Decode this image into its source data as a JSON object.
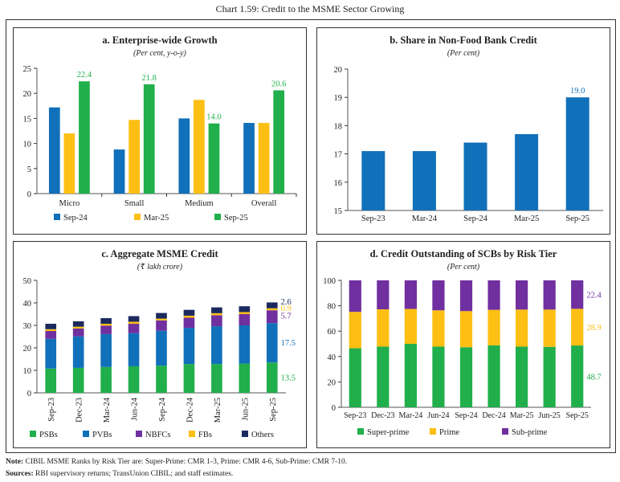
{
  "title": "Chart 1.59: Credit to the MSME Sector Growing",
  "panels": {
    "a": {
      "title": "a. Enterprise-wide Growth",
      "subtitle": "(Per cent, y-o-y)"
    },
    "b": {
      "title": "b. Share in Non-Food Bank Credit",
      "subtitle": "(Per cent)"
    },
    "c": {
      "title": "c. Aggregate MSME Credit",
      "subtitle": "(₹ lakh crore)"
    },
    "d": {
      "title": "d. Credit Outstanding of SCBs by Risk Tier",
      "subtitle": "(Per cent)"
    }
  },
  "note": {
    "label": "Note:",
    "text": " CIBIL MSME Ranks by Risk Tier are: Super-Prime: CMR 1-3, Prime: CMR 4-6, Sub-Prime: CMR 7-10."
  },
  "sources": {
    "label": "Sources:",
    "text": " RBI supervisory returns; TransUnion CIBIL; and staff estimates."
  },
  "chart_data": [
    {
      "type": "bar",
      "id": "a",
      "title": "a. Enterprise-wide Growth",
      "ylabel": "(Per cent, y-o-y)",
      "ylim": [
        0,
        25
      ],
      "yticks": [
        0,
        5,
        10,
        15,
        20,
        25
      ],
      "categories": [
        "Micro",
        "Small",
        "Medium",
        "Overall"
      ],
      "series": [
        {
          "name": "Sep-24",
          "color": "#1170BA",
          "values": [
            17.2,
            8.8,
            15.0,
            14.1
          ]
        },
        {
          "name": "Mar-25",
          "color": "#FDBF13",
          "values": [
            12.0,
            14.7,
            18.7,
            14.1
          ]
        },
        {
          "name": "Sep-25",
          "color": "#21AF4C",
          "values": [
            22.4,
            21.8,
            14.0,
            20.6
          ],
          "labels": [
            "22.4",
            "21.8",
            "14.0",
            "20.6"
          ]
        }
      ],
      "legend": "bottom",
      "grid": false
    },
    {
      "type": "bar",
      "id": "b",
      "title": "b. Share in Non-Food Bank Credit",
      "ylabel": "(Per cent)",
      "ylim": [
        15,
        20
      ],
      "yticks": [
        15,
        16,
        17,
        18,
        19,
        20
      ],
      "categories": [
        "Sep-23",
        "Mar-24",
        "Sep-24",
        "Mar-25",
        "Sep-25"
      ],
      "series": [
        {
          "color": "#1170BA",
          "values": [
            17.1,
            17.1,
            17.4,
            17.7,
            19.0
          ],
          "labels": [
            "",
            "",
            "",
            "",
            "19.0"
          ]
        }
      ],
      "grid": false
    },
    {
      "type": "bar",
      "stacked": true,
      "id": "c",
      "title": "c. Aggregate MSME Credit",
      "ylabel": "(₹ lakh crore)",
      "ylim": [
        0,
        50
      ],
      "yticks": [
        0,
        10,
        20,
        30,
        40,
        50
      ],
      "categories": [
        "Sep-23",
        "Dec-23",
        "Mar-24",
        "Jun-24",
        "Sep-24",
        "Dec-24",
        "Mar-25",
        "Jun-25",
        "Sep-25"
      ],
      "series": [
        {
          "name": "PSBs",
          "color": "#21AF4C",
          "values": [
            10.8,
            11.1,
            11.5,
            11.8,
            12.1,
            12.8,
            12.8,
            13.0,
            13.5
          ],
          "last_label": "13.5"
        },
        {
          "name": "PVBs",
          "color": "#1170BA",
          "values": [
            13.2,
            14.0,
            14.6,
            14.7,
            15.5,
            16.1,
            16.8,
            17.0,
            17.5
          ],
          "last_label": "17.5"
        },
        {
          "name": "NBFCs",
          "color": "#7030A0",
          "values": [
            3.5,
            3.5,
            3.8,
            4.2,
            4.6,
            4.5,
            4.9,
            5.0,
            5.7
          ],
          "last_label": "5.7"
        },
        {
          "name": "FBs",
          "color": "#FDBF13",
          "values": [
            0.8,
            0.8,
            0.8,
            0.9,
            0.8,
            0.9,
            0.9,
            0.9,
            0.9
          ],
          "last_label": "0.9"
        },
        {
          "name": "Others",
          "color": "#1B2A5E",
          "values": [
            2.4,
            2.4,
            2.5,
            2.5,
            2.5,
            2.6,
            2.6,
            2.6,
            2.6
          ],
          "last_label": "2.6"
        }
      ],
      "legend": "bottom",
      "grid": false
    },
    {
      "type": "bar",
      "stacked": true,
      "id": "d",
      "title": "d. Credit Outstanding of SCBs by Risk Tier",
      "ylabel": "(Per cent)",
      "ylim": [
        0,
        100
      ],
      "yticks": [
        0,
        20,
        40,
        60,
        80,
        100
      ],
      "categories": [
        "Sep-23",
        "Dec-23",
        "Mar-24",
        "Jun-24",
        "Sep-24",
        "Dec-24",
        "Mar-25",
        "Jun-25",
        "Sep-25"
      ],
      "series": [
        {
          "name": "Super-prime",
          "color": "#21AF4C",
          "values": [
            46.5,
            47.8,
            50.0,
            47.8,
            47.3,
            48.8,
            47.8,
            47.6,
            48.7
          ],
          "last_label": "48.7"
        },
        {
          "name": "Prime",
          "color": "#FDBF13",
          "values": [
            28.7,
            29.4,
            27.5,
            28.6,
            28.5,
            28.0,
            29.2,
            29.4,
            28.9
          ],
          "last_label": "28.9"
        },
        {
          "name": "Sub-prime",
          "color": "#7030A0",
          "values": [
            24.8,
            22.8,
            22.5,
            23.6,
            24.2,
            23.2,
            23.0,
            23.0,
            22.4
          ],
          "last_label": "22.4"
        }
      ],
      "legend": "bottom",
      "grid": false
    }
  ]
}
